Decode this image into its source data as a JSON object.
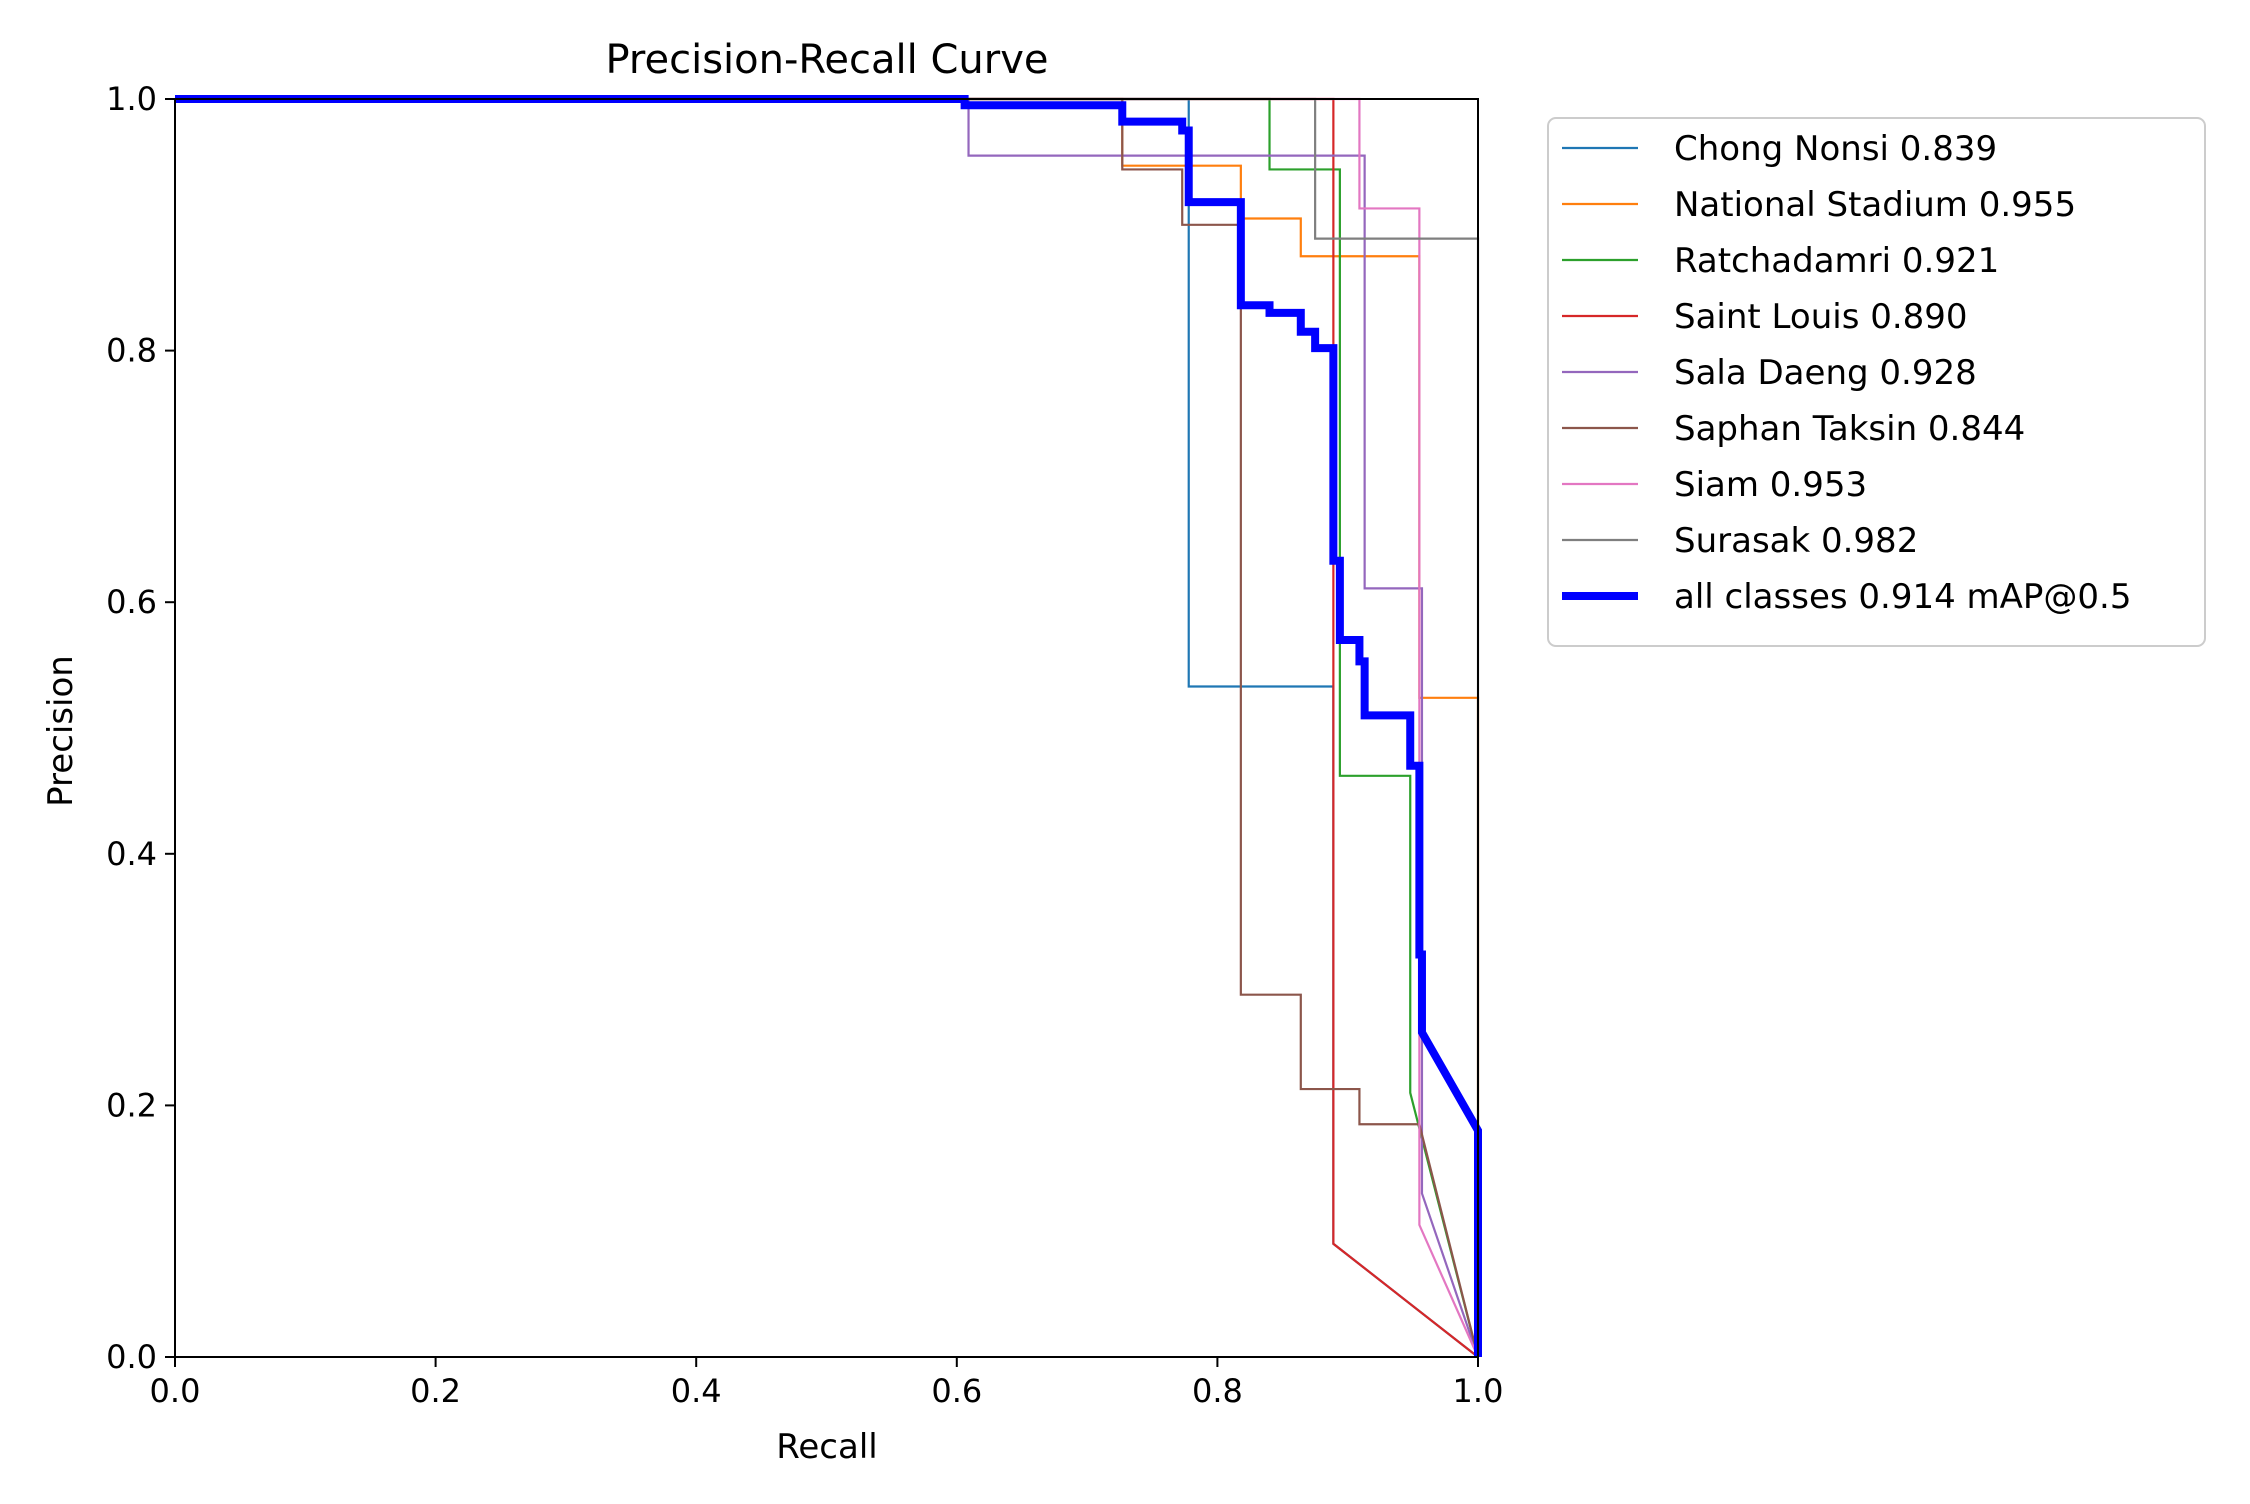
{
  "chart_data": {
    "type": "line",
    "title": "Precision-Recall Curve",
    "xlabel": "Recall",
    "ylabel": "Precision",
    "xlim": [
      0,
      1
    ],
    "ylim": [
      0,
      1
    ],
    "xticks": [
      "0.0",
      "0.2",
      "0.4",
      "0.6",
      "0.8",
      "1.0"
    ],
    "yticks": [
      "0.0",
      "0.2",
      "0.4",
      "0.6",
      "0.8",
      "1.0"
    ],
    "grid": false,
    "legend_position": "outside-right-top",
    "series": [
      {
        "name": "Chong Nonsi 0.839",
        "color": "#1f77b4",
        "x": [
          0,
          0.778,
          0.778,
          0.778,
          0.889,
          0.889,
          1.0
        ],
        "y": [
          1.0,
          1.0,
          0.947,
          0.533,
          0.533,
          0.09,
          0.0
        ]
      },
      {
        "name": "National Stadium 0.955",
        "color": "#ff7f0e",
        "x": [
          0,
          0.727,
          0.727,
          0.818,
          0.818,
          0.864,
          0.864,
          0.955,
          0.955,
          1.0,
          1.0
        ],
        "y": [
          1.0,
          1.0,
          0.947,
          0.947,
          0.905,
          0.905,
          0.875,
          0.875,
          0.524,
          0.524,
          0.0
        ]
      },
      {
        "name": "Ratchadamri 0.921",
        "color": "#2ca02c",
        "x": [
          0,
          0.84,
          0.84,
          0.84,
          0.894,
          0.894,
          0.948,
          0.948,
          1.0
        ],
        "y": [
          1.0,
          1.0,
          1.0,
          0.944,
          0.944,
          0.462,
          0.462,
          0.21,
          0.0
        ]
      },
      {
        "name": "Saint Louis 0.890",
        "color": "#d62728",
        "x": [
          0,
          0.889,
          0.889,
          1.0
        ],
        "y": [
          1.0,
          1.0,
          0.09,
          0.0
        ]
      },
      {
        "name": "Sala Daeng 0.928",
        "color": "#9467bd",
        "x": [
          0,
          0.609,
          0.609,
          0.913,
          0.913,
          0.957,
          0.957,
          1.0
        ],
        "y": [
          1.0,
          1.0,
          0.955,
          0.955,
          0.611,
          0.611,
          0.13,
          0.0
        ]
      },
      {
        "name": "Saphan Taksin 0.844",
        "color": "#8c564b",
        "x": [
          0,
          0.727,
          0.727,
          0.773,
          0.773,
          0.818,
          0.818,
          0.864,
          0.864,
          0.909,
          0.909,
          0.955,
          0.955,
          1.0
        ],
        "y": [
          1.0,
          1.0,
          0.944,
          0.944,
          0.9,
          0.9,
          0.288,
          0.288,
          0.213,
          0.213,
          0.185,
          0.185,
          0.185,
          0.0
        ]
      },
      {
        "name": "Siam 0.953",
        "color": "#e377c2",
        "x": [
          0,
          0.889,
          0.889,
          0.909,
          0.909,
          0.955,
          0.955,
          1.0
        ],
        "y": [
          1.0,
          1.0,
          1.0,
          1.0,
          0.913,
          0.913,
          0.105,
          0.0
        ]
      },
      {
        "name": "Surasak 0.982",
        "color": "#7f7f7f",
        "x": [
          0,
          0.875,
          0.875,
          1.0,
          1.0
        ],
        "y": [
          1.0,
          1.0,
          0.889,
          0.889,
          0.0
        ]
      },
      {
        "name": "all classes 0.914 mAP@0.5",
        "color": "#0000ff",
        "x": [
          0,
          0.606,
          0.606,
          0.727,
          0.727,
          0.773,
          0.773,
          0.778,
          0.778,
          0.818,
          0.818,
          0.84,
          0.84,
          0.864,
          0.864,
          0.875,
          0.875,
          0.889,
          0.889,
          0.894,
          0.894,
          0.909,
          0.909,
          0.913,
          0.913,
          0.948,
          0.948,
          0.955,
          0.955,
          0.957,
          0.957,
          1.0,
          1.0
        ],
        "y": [
          1.0,
          1.0,
          0.995,
          0.995,
          0.982,
          0.982,
          0.975,
          0.975,
          0.918,
          0.918,
          0.836,
          0.836,
          0.83,
          0.83,
          0.815,
          0.815,
          0.802,
          0.802,
          0.633,
          0.633,
          0.57,
          0.57,
          0.553,
          0.553,
          0.51,
          0.51,
          0.47,
          0.47,
          0.32,
          0.32,
          0.258,
          0.18,
          0.0
        ],
        "bold": true
      }
    ]
  }
}
